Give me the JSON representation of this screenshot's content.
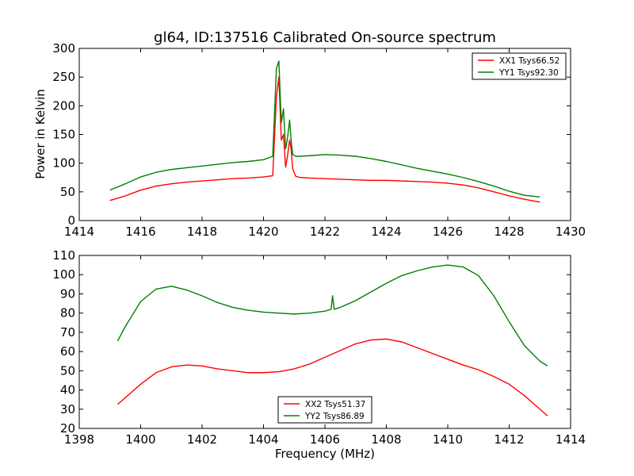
{
  "chart_data": [
    {
      "type": "line",
      "title": "gl64, ID:137516 Calibrated On-source spectrum",
      "xlabel": "",
      "ylabel": "Power in Kelvin",
      "xlim": [
        1414,
        1430
      ],
      "ylim": [
        0,
        300
      ],
      "xticks": [
        "1414",
        "1416",
        "1418",
        "1420",
        "1422",
        "1424",
        "1426",
        "1428",
        "1430"
      ],
      "yticks": [
        "0",
        "50",
        "100",
        "150",
        "200",
        "250",
        "300"
      ],
      "grid": false,
      "legend_position": "top-right",
      "series": [
        {
          "name": "XX1 Tsys66.52",
          "color": "#ff0000",
          "x": [
            1415.0,
            1415.5,
            1416.0,
            1416.5,
            1417.0,
            1417.5,
            1418.0,
            1418.5,
            1419.0,
            1419.5,
            1420.0,
            1420.3,
            1420.42,
            1420.5,
            1420.58,
            1420.65,
            1420.72,
            1420.78,
            1420.85,
            1420.9,
            1420.95,
            1421.05,
            1421.2,
            1421.5,
            1422.0,
            1422.5,
            1423.0,
            1423.5,
            1424.0,
            1424.5,
            1425.0,
            1425.5,
            1426.0,
            1426.5,
            1427.0,
            1427.5,
            1428.0,
            1428.5,
            1429.0
          ],
          "y": [
            35,
            43,
            53,
            60,
            64,
            67,
            69,
            71,
            73,
            74,
            76,
            78,
            215,
            250,
            140,
            150,
            93,
            112,
            140,
            125,
            90,
            77,
            75,
            74,
            73,
            72,
            71,
            70,
            70,
            69,
            68,
            67,
            65,
            62,
            57,
            50,
            43,
            37,
            32
          ]
        },
        {
          "name": "YY1 Tsys92.30",
          "color": "#008000",
          "x": [
            1415.0,
            1415.5,
            1416.0,
            1416.5,
            1417.0,
            1417.5,
            1418.0,
            1418.5,
            1419.0,
            1419.5,
            1420.0,
            1420.3,
            1420.42,
            1420.5,
            1420.58,
            1420.65,
            1420.72,
            1420.78,
            1420.85,
            1420.9,
            1420.95,
            1421.05,
            1421.2,
            1421.5,
            1422.0,
            1422.5,
            1423.0,
            1423.5,
            1424.0,
            1424.5,
            1425.0,
            1425.5,
            1426.0,
            1426.5,
            1427.0,
            1427.5,
            1428.0,
            1428.5,
            1429.0
          ],
          "y": [
            53,
            64,
            76,
            84,
            89,
            92,
            95,
            98,
            101,
            103,
            106,
            112,
            265,
            278,
            170,
            195,
            125,
            143,
            175,
            140,
            115,
            112,
            112,
            113,
            115,
            114,
            112,
            108,
            103,
            97,
            91,
            86,
            81,
            75,
            68,
            60,
            51,
            44,
            41
          ]
        }
      ]
    },
    {
      "type": "line",
      "title": "",
      "xlabel": "Frequency (MHz)",
      "ylabel": "",
      "xlim": [
        1398,
        1414
      ],
      "ylim": [
        20,
        110
      ],
      "xticks": [
        "1398",
        "1400",
        "1402",
        "1404",
        "1406",
        "1408",
        "1410",
        "1412",
        "1414"
      ],
      "yticks": [
        "20",
        "30",
        "40",
        "50",
        "60",
        "70",
        "80",
        "90",
        "100",
        "110"
      ],
      "grid": false,
      "legend_position": "bottom-center",
      "series": [
        {
          "name": "XX2 Tsys51.37",
          "color": "#ff0000",
          "x": [
            1399.25,
            1399.5,
            1400.0,
            1400.5,
            1401.0,
            1401.5,
            1402.0,
            1402.5,
            1403.0,
            1403.5,
            1404.0,
            1404.5,
            1405.0,
            1405.5,
            1406.0,
            1406.5,
            1407.0,
            1407.5,
            1408.0,
            1408.5,
            1409.0,
            1409.5,
            1410.0,
            1410.5,
            1411.0,
            1411.5,
            1412.0,
            1412.5,
            1413.0,
            1413.25
          ],
          "y": [
            32.5,
            36,
            43,
            49,
            52,
            53,
            52.5,
            51,
            50,
            49,
            49,
            49.5,
            51,
            53.5,
            57,
            60.5,
            64,
            66,
            66.5,
            65,
            62,
            59,
            56,
            53,
            50.5,
            47,
            43,
            37,
            30,
            26.5
          ]
        },
        {
          "name": "YY2 Tsys86.89",
          "color": "#008000",
          "x": [
            1399.25,
            1399.5,
            1400.0,
            1400.5,
            1401.0,
            1401.5,
            1402.0,
            1402.5,
            1403.0,
            1403.5,
            1404.0,
            1404.5,
            1405.0,
            1405.5,
            1406.0,
            1406.2,
            1406.25,
            1406.3,
            1406.5,
            1407.0,
            1407.5,
            1408.0,
            1408.5,
            1409.0,
            1409.5,
            1410.0,
            1410.5,
            1411.0,
            1411.5,
            1412.0,
            1412.5,
            1413.0,
            1413.25
          ],
          "y": [
            65.5,
            73,
            86,
            92.5,
            94,
            92,
            89,
            85.5,
            83,
            81.5,
            80.5,
            80,
            79.5,
            80,
            81,
            82,
            89,
            82,
            83,
            86.5,
            91,
            95.5,
            99.5,
            102,
            104,
            105,
            104,
            99.5,
            89,
            75.5,
            63,
            55,
            52.5
          ]
        }
      ]
    }
  ]
}
